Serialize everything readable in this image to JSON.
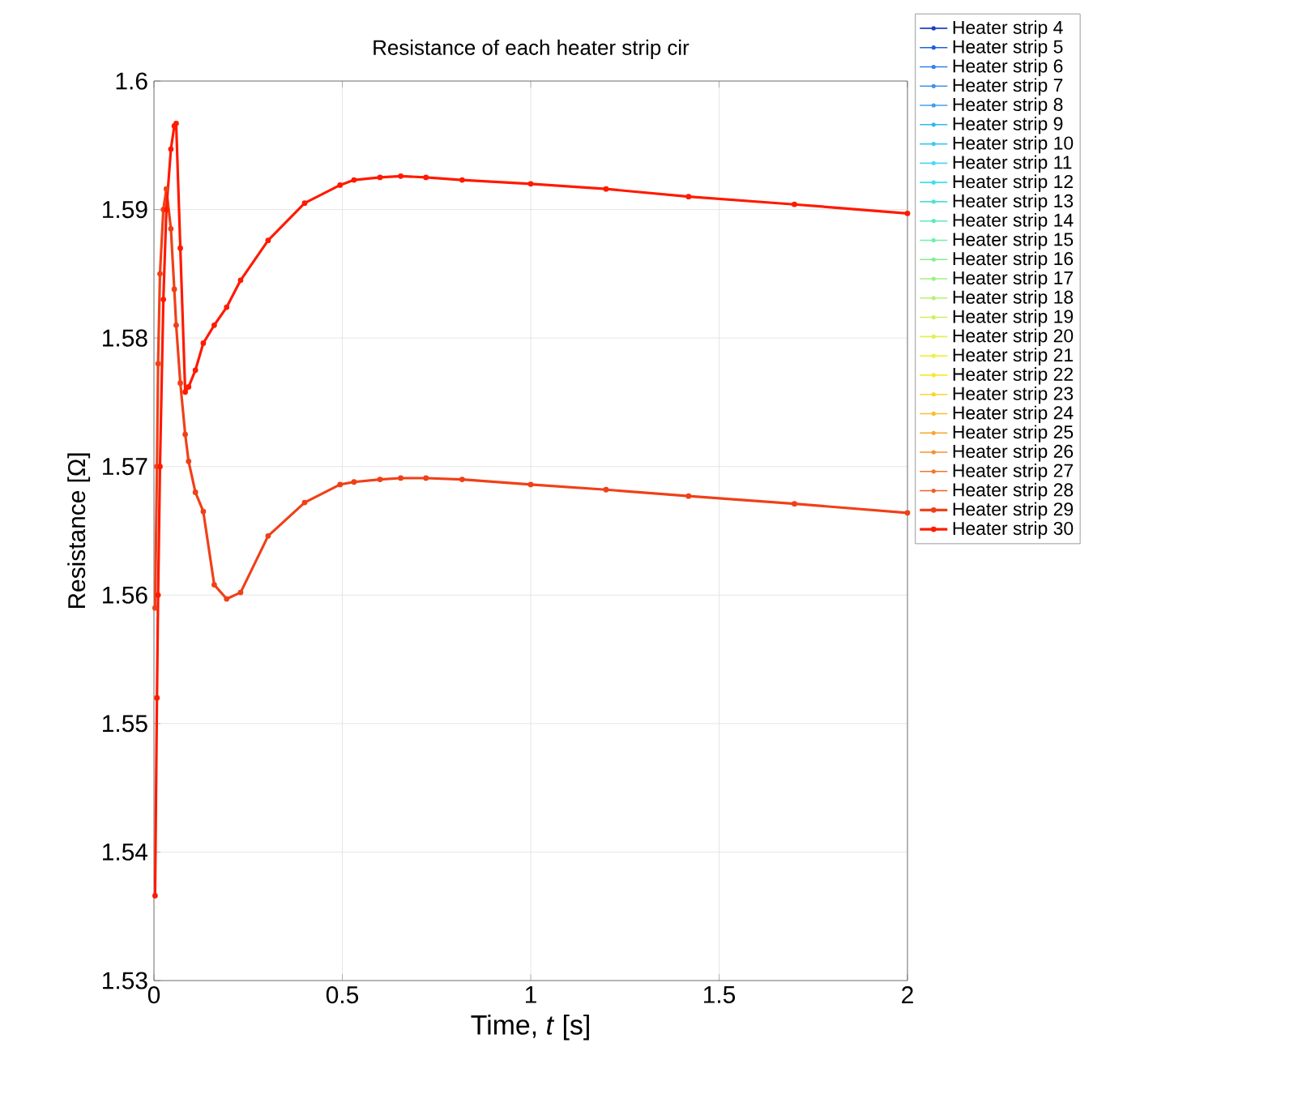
{
  "chart_data": {
    "type": "line",
    "title": "Resistance of each heater strip cir",
    "xlabel": "Time, *t* [s]",
    "ylabel": "Resistance [Ω]",
    "x": [
      0.003,
      0.008,
      0.011,
      0.016,
      0.025,
      0.033,
      0.045,
      0.054,
      0.059,
      0.07,
      0.083,
      0.092,
      0.11,
      0.131,
      0.16,
      0.193,
      0.23,
      0.303,
      0.4,
      0.494,
      0.531,
      0.6,
      0.655,
      0.722,
      0.818,
      1.0,
      1.2,
      1.419,
      1.7,
      2.0
    ],
    "xlim": [
      0,
      2
    ],
    "xticks": [
      0,
      0.5,
      1,
      1.5,
      2
    ],
    "ylim": [
      1.53,
      1.6
    ],
    "yticks": [
      1.53,
      1.54,
      1.55,
      1.56,
      1.57,
      1.58,
      1.59,
      1.6
    ],
    "grid": true,
    "legend": "top right",
    "marker": "circle",
    "line_style": "solid",
    "series": [
      {
        "name": "Heater strip 4",
        "color": "#1f3fbf",
        "values": [
          null,
          null,
          null,
          null,
          null,
          null,
          null,
          null,
          null,
          null,
          null,
          null,
          null,
          null,
          null,
          null,
          null,
          null,
          null,
          null,
          null,
          null,
          null,
          null,
          null,
          null,
          null,
          null,
          null,
          null
        ]
      },
      {
        "name": "Heater strip 5",
        "color": "#2060e0",
        "values": [
          null,
          null,
          null,
          null,
          null,
          null,
          null,
          null,
          null,
          null,
          null,
          null,
          null,
          null,
          null,
          null,
          null,
          null,
          null,
          null,
          null,
          null,
          null,
          null,
          null,
          null,
          null,
          null,
          null,
          null
        ]
      },
      {
        "name": "Heater strip 6",
        "color": "#3080f0",
        "values": [
          null,
          null,
          null,
          null,
          null,
          null,
          null,
          null,
          null,
          null,
          null,
          null,
          null,
          null,
          null,
          null,
          null,
          null,
          null,
          null,
          null,
          null,
          null,
          null,
          null,
          null,
          null,
          null,
          null,
          null
        ]
      },
      {
        "name": "Heater strip 7",
        "color": "#4090f0",
        "values": [
          null,
          null,
          null,
          null,
          null,
          null,
          null,
          null,
          null,
          null,
          null,
          null,
          null,
          null,
          null,
          null,
          null,
          null,
          null,
          null,
          null,
          null,
          null,
          null,
          null,
          null,
          null,
          null,
          null,
          null
        ]
      },
      {
        "name": "Heater strip 8",
        "color": "#40a0f0",
        "values": [
          null,
          null,
          null,
          null,
          null,
          null,
          null,
          null,
          null,
          null,
          null,
          null,
          null,
          null,
          null,
          null,
          null,
          null,
          null,
          null,
          null,
          null,
          null,
          null,
          null,
          null,
          null,
          null,
          null,
          null
        ]
      },
      {
        "name": "Heater strip 9",
        "color": "#30b8f0",
        "values": [
          null,
          null,
          null,
          null,
          null,
          null,
          null,
          null,
          null,
          null,
          null,
          null,
          null,
          null,
          null,
          null,
          null,
          null,
          null,
          null,
          null,
          null,
          null,
          null,
          null,
          null,
          null,
          null,
          null,
          null
        ]
      },
      {
        "name": "Heater strip 10",
        "color": "#40c8f0",
        "values": [
          null,
          null,
          null,
          null,
          null,
          null,
          null,
          null,
          null,
          null,
          null,
          null,
          null,
          null,
          null,
          null,
          null,
          null,
          null,
          null,
          null,
          null,
          null,
          null,
          null,
          null,
          null,
          null,
          null,
          null
        ]
      },
      {
        "name": "Heater strip 11",
        "color": "#50d8f0",
        "values": [
          null,
          null,
          null,
          null,
          null,
          null,
          null,
          null,
          null,
          null,
          null,
          null,
          null,
          null,
          null,
          null,
          null,
          null,
          null,
          null,
          null,
          null,
          null,
          null,
          null,
          null,
          null,
          null,
          null,
          null
        ]
      },
      {
        "name": "Heater strip 12",
        "color": "#40e0e8",
        "values": [
          null,
          null,
          null,
          null,
          null,
          null,
          null,
          null,
          null,
          null,
          null,
          null,
          null,
          null,
          null,
          null,
          null,
          null,
          null,
          null,
          null,
          null,
          null,
          null,
          null,
          null,
          null,
          null,
          null,
          null
        ]
      },
      {
        "name": "Heater strip 13",
        "color": "#50e0d8",
        "values": [
          null,
          null,
          null,
          null,
          null,
          null,
          null,
          null,
          null,
          null,
          null,
          null,
          null,
          null,
          null,
          null,
          null,
          null,
          null,
          null,
          null,
          null,
          null,
          null,
          null,
          null,
          null,
          null,
          null,
          null
        ]
      },
      {
        "name": "Heater strip 14",
        "color": "#60e8c0",
        "values": [
          null,
          null,
          null,
          null,
          null,
          null,
          null,
          null,
          null,
          null,
          null,
          null,
          null,
          null,
          null,
          null,
          null,
          null,
          null,
          null,
          null,
          null,
          null,
          null,
          null,
          null,
          null,
          null,
          null,
          null
        ]
      },
      {
        "name": "Heater strip 15",
        "color": "#70f0a8",
        "values": [
          null,
          null,
          null,
          null,
          null,
          null,
          null,
          null,
          null,
          null,
          null,
          null,
          null,
          null,
          null,
          null,
          null,
          null,
          null,
          null,
          null,
          null,
          null,
          null,
          null,
          null,
          null,
          null,
          null,
          null
        ]
      },
      {
        "name": "Heater strip 16",
        "color": "#80f090",
        "values": [
          null,
          null,
          null,
          null,
          null,
          null,
          null,
          null,
          null,
          null,
          null,
          null,
          null,
          null,
          null,
          null,
          null,
          null,
          null,
          null,
          null,
          null,
          null,
          null,
          null,
          null,
          null,
          null,
          null,
          null
        ]
      },
      {
        "name": "Heater strip 17",
        "color": "#a0f080",
        "values": [
          null,
          null,
          null,
          null,
          null,
          null,
          null,
          null,
          null,
          null,
          null,
          null,
          null,
          null,
          null,
          null,
          null,
          null,
          null,
          null,
          null,
          null,
          null,
          null,
          null,
          null,
          null,
          null,
          null,
          null
        ]
      },
      {
        "name": "Heater strip 18",
        "color": "#b8f070",
        "values": [
          null,
          null,
          null,
          null,
          null,
          null,
          null,
          null,
          null,
          null,
          null,
          null,
          null,
          null,
          null,
          null,
          null,
          null,
          null,
          null,
          null,
          null,
          null,
          null,
          null,
          null,
          null,
          null,
          null,
          null
        ]
      },
      {
        "name": "Heater strip 19",
        "color": "#d0f060",
        "values": [
          null,
          null,
          null,
          null,
          null,
          null,
          null,
          null,
          null,
          null,
          null,
          null,
          null,
          null,
          null,
          null,
          null,
          null,
          null,
          null,
          null,
          null,
          null,
          null,
          null,
          null,
          null,
          null,
          null,
          null
        ]
      },
      {
        "name": "Heater strip 20",
        "color": "#e0f050",
        "values": [
          null,
          null,
          null,
          null,
          null,
          null,
          null,
          null,
          null,
          null,
          null,
          null,
          null,
          null,
          null,
          null,
          null,
          null,
          null,
          null,
          null,
          null,
          null,
          null,
          null,
          null,
          null,
          null,
          null,
          null
        ]
      },
      {
        "name": "Heater strip 21",
        "color": "#f0f040",
        "values": [
          null,
          null,
          null,
          null,
          null,
          null,
          null,
          null,
          null,
          null,
          null,
          null,
          null,
          null,
          null,
          null,
          null,
          null,
          null,
          null,
          null,
          null,
          null,
          null,
          null,
          null,
          null,
          null,
          null,
          null
        ]
      },
      {
        "name": "Heater strip 22",
        "color": "#f8e830",
        "values": [
          null,
          null,
          null,
          null,
          null,
          null,
          null,
          null,
          null,
          null,
          null,
          null,
          null,
          null,
          null,
          null,
          null,
          null,
          null,
          null,
          null,
          null,
          null,
          null,
          null,
          null,
          null,
          null,
          null,
          null
        ]
      },
      {
        "name": "Heater strip 23",
        "color": "#f8d830",
        "values": [
          null,
          null,
          null,
          null,
          null,
          null,
          null,
          null,
          null,
          null,
          null,
          null,
          null,
          null,
          null,
          null,
          null,
          null,
          null,
          null,
          null,
          null,
          null,
          null,
          null,
          null,
          null,
          null,
          null,
          null
        ]
      },
      {
        "name": "Heater strip 24",
        "color": "#f8c030",
        "values": [
          null,
          null,
          null,
          null,
          null,
          null,
          null,
          null,
          null,
          null,
          null,
          null,
          null,
          null,
          null,
          null,
          null,
          null,
          null,
          null,
          null,
          null,
          null,
          null,
          null,
          null,
          null,
          null,
          null,
          null
        ]
      },
      {
        "name": "Heater strip 25",
        "color": "#f8a830",
        "values": [
          null,
          null,
          null,
          null,
          null,
          null,
          null,
          null,
          null,
          null,
          null,
          null,
          null,
          null,
          null,
          null,
          null,
          null,
          null,
          null,
          null,
          null,
          null,
          null,
          null,
          null,
          null,
          null,
          null,
          null
        ]
      },
      {
        "name": "Heater strip 26",
        "color": "#f89030",
        "values": [
          null,
          null,
          null,
          null,
          null,
          null,
          null,
          null,
          null,
          null,
          null,
          null,
          null,
          null,
          null,
          null,
          null,
          null,
          null,
          null,
          null,
          null,
          null,
          null,
          null,
          null,
          null,
          null,
          null,
          null
        ]
      },
      {
        "name": "Heater strip 27",
        "color": "#f07828",
        "values": [
          null,
          null,
          null,
          null,
          null,
          null,
          null,
          null,
          null,
          null,
          null,
          null,
          null,
          null,
          null,
          null,
          null,
          null,
          null,
          null,
          null,
          null,
          null,
          null,
          null,
          null,
          null,
          null,
          null,
          null
        ]
      },
      {
        "name": "Heater strip 28",
        "color": "#f06020",
        "values": [
          null,
          null,
          null,
          null,
          null,
          null,
          null,
          null,
          null,
          null,
          null,
          null,
          null,
          null,
          null,
          null,
          null,
          null,
          null,
          null,
          null,
          null,
          null,
          null,
          null,
          null,
          null,
          null,
          null,
          null
        ]
      },
      {
        "name": "Heater strip 29",
        "color": "#f04018",
        "values": [
          1.559,
          1.57,
          1.578,
          1.585,
          1.59,
          1.5916,
          1.5885,
          1.5838,
          1.581,
          1.5765,
          1.5725,
          1.5704,
          1.568,
          1.5665,
          1.5608,
          1.5597,
          1.5602,
          1.5646,
          1.5672,
          1.5686,
          1.5688,
          1.569,
          1.5691,
          1.5691,
          1.569,
          1.5686,
          1.5682,
          1.5677,
          1.5671,
          1.5664
        ]
      },
      {
        "name": "Heater strip 30",
        "color": "#ff1a00",
        "values": [
          1.5366,
          1.552,
          1.56,
          1.57,
          1.583,
          1.59,
          1.5947,
          1.5965,
          1.5967,
          1.587,
          1.5758,
          1.5762,
          1.5775,
          1.5796,
          1.581,
          1.5824,
          1.5845,
          1.5876,
          1.5905,
          1.5919,
          1.5923,
          1.5925,
          1.5926,
          1.5925,
          1.5923,
          1.592,
          1.5916,
          1.591,
          1.5904,
          1.5897
        ]
      }
    ]
  }
}
